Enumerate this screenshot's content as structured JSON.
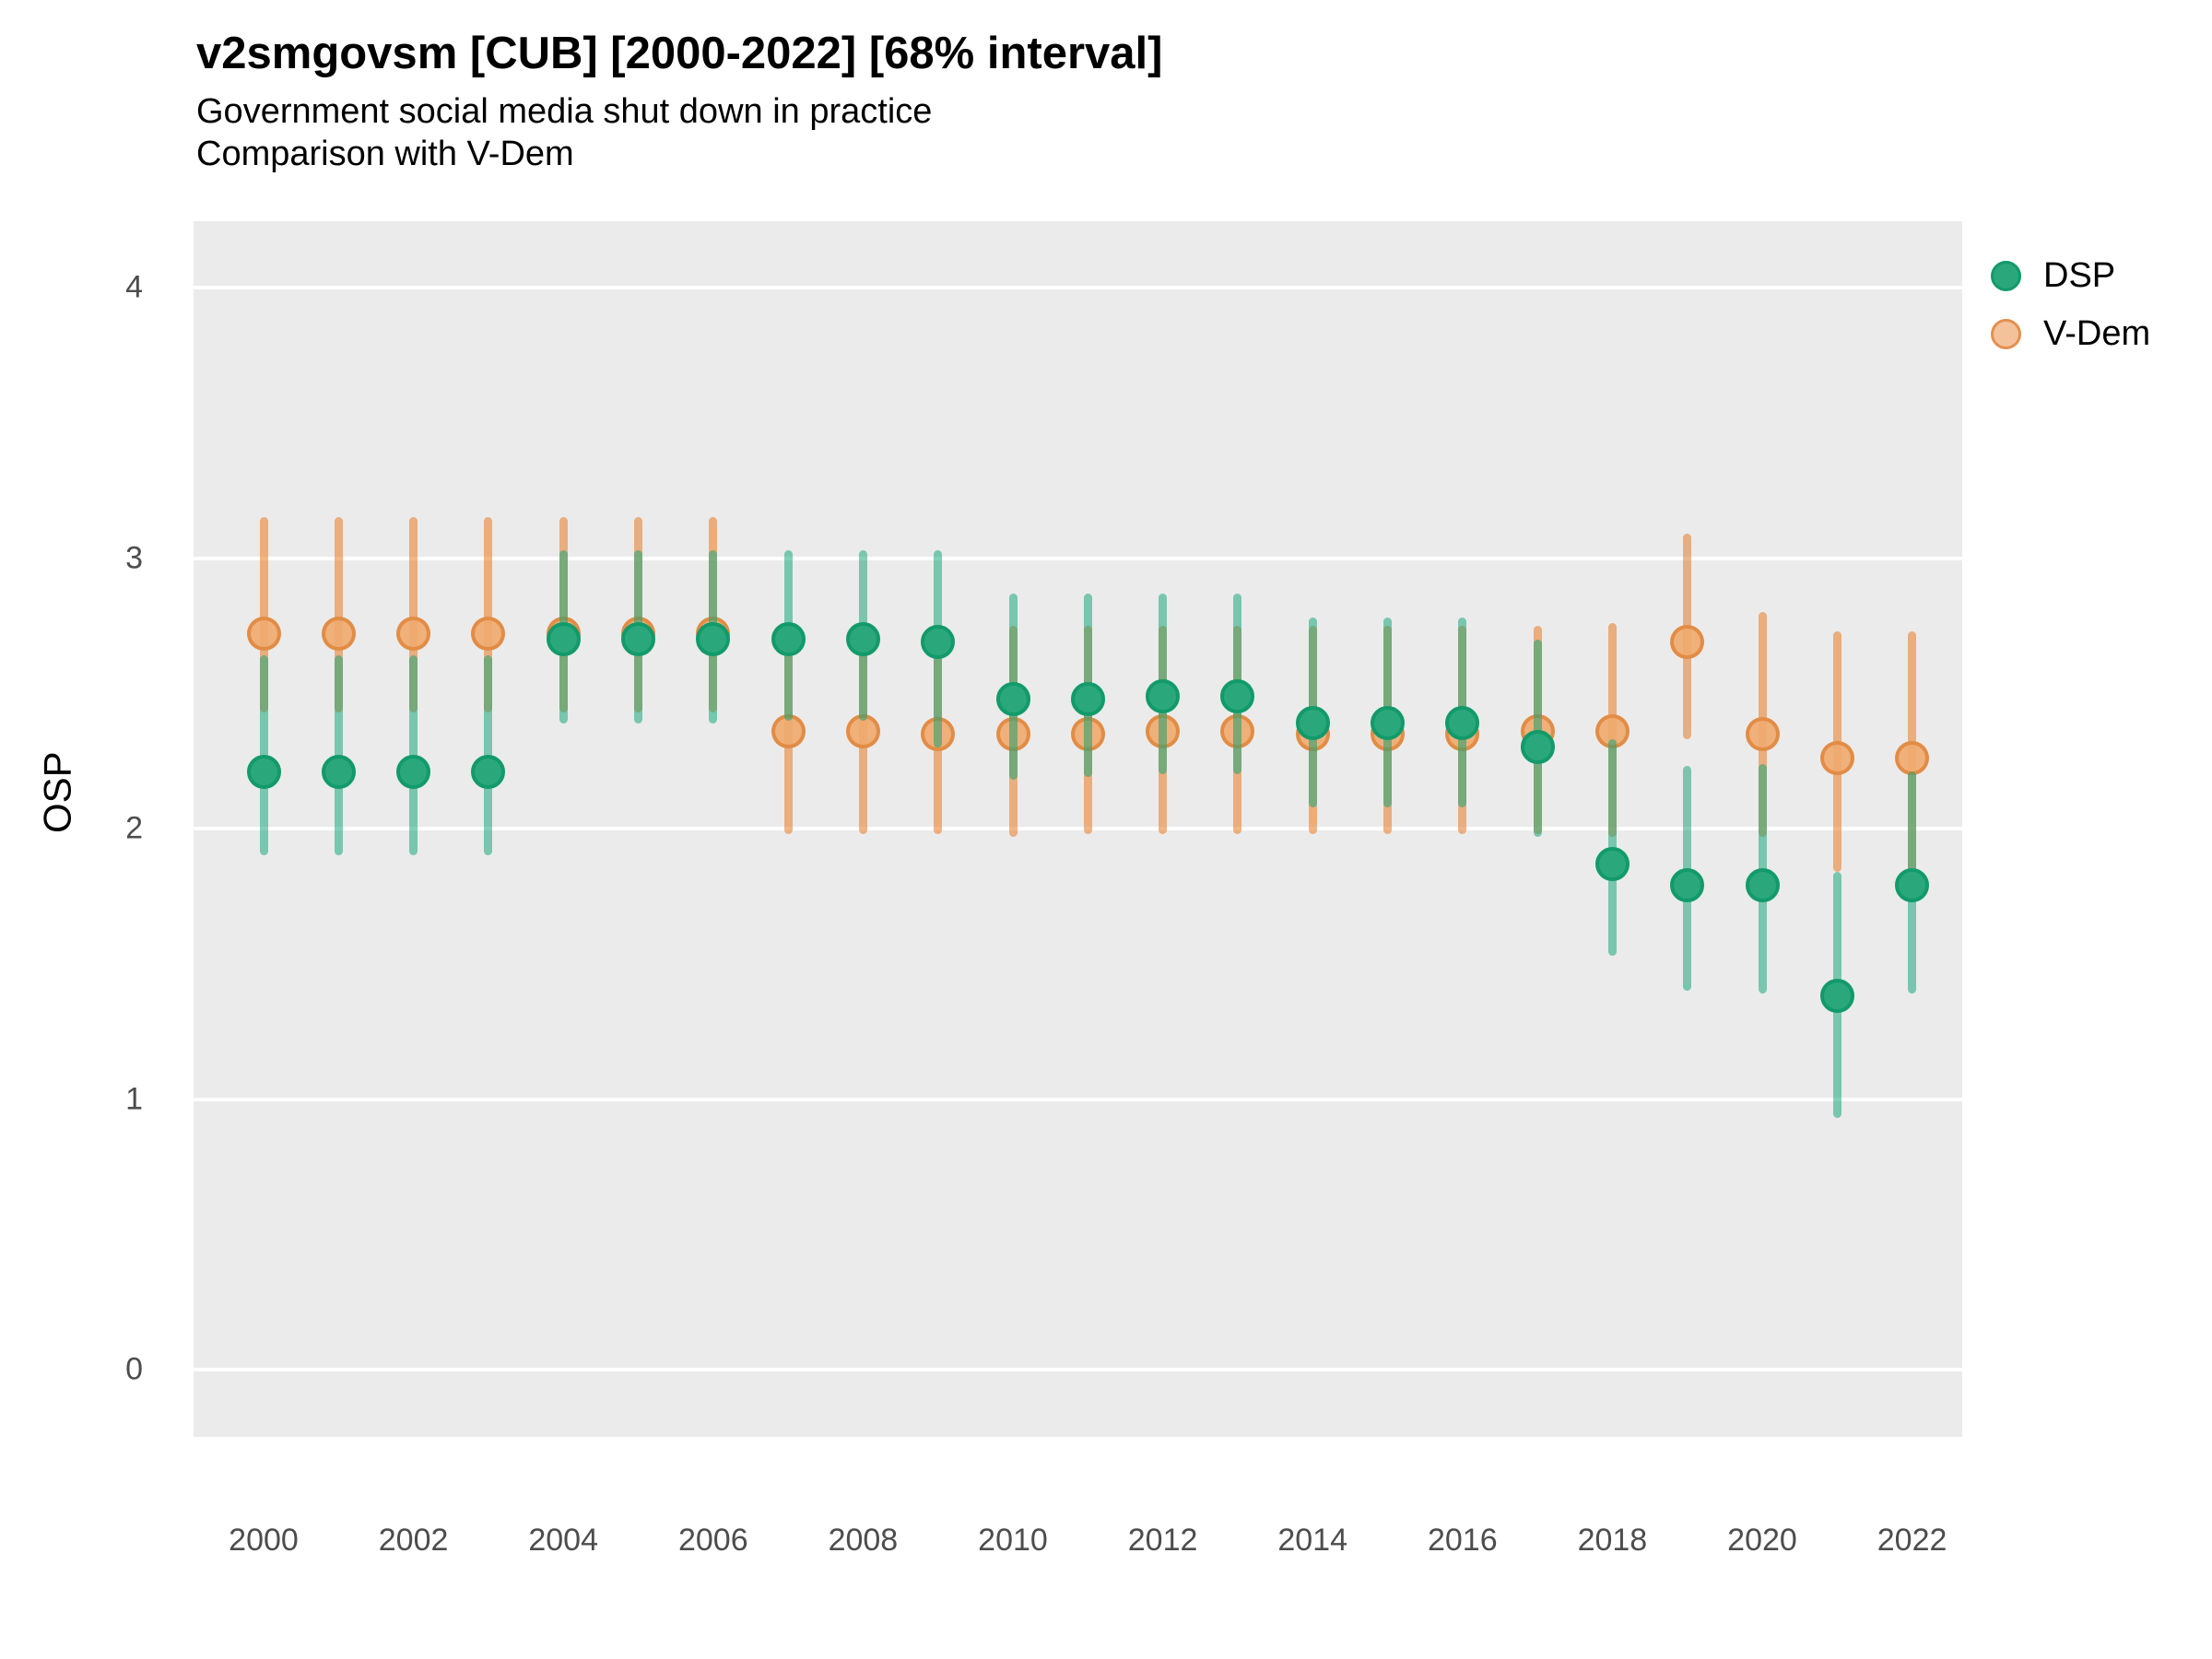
{
  "title": "v2smgovsm [CUB] [2000-2022] [68% interval]",
  "subtitle_line1": "Government social media shut down in practice",
  "subtitle_line2": "Comparison with V-Dem",
  "y_axis_label": "OSP",
  "legend": {
    "items": [
      {
        "label": "DSP",
        "color": "#2aa87c",
        "border": "#129a6b"
      },
      {
        "label": "V-Dem",
        "color": "#f3c29a",
        "border": "#e49050"
      }
    ]
  },
  "chart_data": {
    "type": "pointrange",
    "title": "v2smgovsm [CUB] [2000-2022] [68% interval]",
    "subtitle": "Government social media shut down in practice / Comparison with V-Dem",
    "ylabel": "OSP",
    "xlabel": "",
    "ylim": [
      -0.25,
      4.25
    ],
    "yticks": [
      0,
      1,
      2,
      3,
      4
    ],
    "xticks": [
      2000,
      2002,
      2004,
      2006,
      2008,
      2010,
      2012,
      2014,
      2016,
      2018,
      2020,
      2022
    ],
    "grid": "major-horizontal-white-on-gray",
    "legend_position": "top-right-outside",
    "interval_level": "68%",
    "x": [
      2000,
      2001,
      2002,
      2003,
      2004,
      2005,
      2006,
      2007,
      2008,
      2009,
      2010,
      2011,
      2012,
      2013,
      2014,
      2015,
      2016,
      2017,
      2018,
      2019,
      2020,
      2021,
      2022
    ],
    "series": [
      {
        "name": "V-Dem",
        "point_fill": "rgba(240,170,110,0.9)",
        "point_border": "rgba(226,138,66,0.95)",
        "line_color": "rgba(232,135,60,0.62)",
        "values": [
          2.72,
          2.72,
          2.72,
          2.72,
          2.72,
          2.72,
          2.72,
          2.36,
          2.36,
          2.35,
          2.35,
          2.35,
          2.36,
          2.36,
          2.35,
          2.35,
          2.35,
          2.36,
          2.36,
          2.69,
          2.35,
          2.26,
          2.26
        ],
        "lo": [
          2.43,
          2.43,
          2.43,
          2.43,
          2.43,
          2.43,
          2.43,
          1.98,
          1.98,
          1.98,
          1.97,
          1.98,
          1.98,
          1.98,
          1.98,
          1.98,
          1.98,
          1.98,
          1.97,
          2.33,
          1.97,
          1.84,
          1.83
        ],
        "hi": [
          3.15,
          3.15,
          3.15,
          3.15,
          3.15,
          3.15,
          3.15,
          2.75,
          2.75,
          2.74,
          2.75,
          2.75,
          2.75,
          2.75,
          2.75,
          2.75,
          2.75,
          2.75,
          2.76,
          3.09,
          2.8,
          2.73,
          2.73
        ]
      },
      {
        "name": "DSP",
        "point_fill": "#2aa87c",
        "point_border": "#129a6b",
        "line_color": "rgba(16,164,118,0.52)",
        "values": [
          2.21,
          2.21,
          2.21,
          2.21,
          2.7,
          2.7,
          2.7,
          2.7,
          2.7,
          2.69,
          2.48,
          2.48,
          2.49,
          2.49,
          2.39,
          2.39,
          2.39,
          2.3,
          1.87,
          1.79,
          1.79,
          1.38,
          1.79
        ],
        "lo": [
          1.9,
          1.9,
          1.9,
          1.9,
          2.39,
          2.39,
          2.39,
          2.4,
          2.4,
          2.3,
          2.18,
          2.19,
          2.2,
          2.2,
          2.08,
          2.08,
          2.08,
          1.97,
          1.53,
          1.4,
          1.39,
          0.93,
          1.39
        ],
        "hi": [
          2.64,
          2.64,
          2.64,
          2.64,
          3.03,
          3.03,
          3.03,
          3.03,
          3.03,
          3.03,
          2.87,
          2.87,
          2.87,
          2.87,
          2.78,
          2.78,
          2.78,
          2.7,
          2.33,
          2.23,
          2.24,
          1.84,
          2.21
        ]
      }
    ]
  },
  "layout_values": {
    "panel_bg": "#ebebeb",
    "grid_color": "#ffffff"
  }
}
